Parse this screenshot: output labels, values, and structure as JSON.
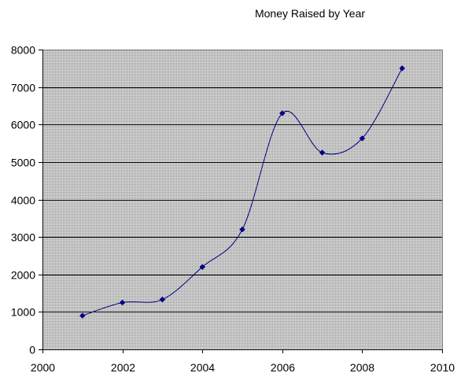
{
  "chart_data": {
    "type": "line",
    "title": "Money Raised by Year",
    "xlabel": "",
    "ylabel": "",
    "xlim": [
      2000,
      2010
    ],
    "ylim": [
      0,
      8000
    ],
    "x_ticks": [
      2000,
      2002,
      2004,
      2006,
      2008,
      2010
    ],
    "y_ticks": [
      0,
      1000,
      2000,
      3000,
      4000,
      5000,
      6000,
      7000,
      8000
    ],
    "grid": "horizontal",
    "legend": "none",
    "smooth": true,
    "series": [
      {
        "x": [
          2001,
          2002,
          2003,
          2004,
          2005,
          2006,
          2007,
          2008,
          2009
        ],
        "y": [
          900,
          1250,
          1330,
          2200,
          3200,
          6300,
          5250,
          5630,
          7500
        ]
      }
    ],
    "colors": {
      "line": "#000080",
      "marker": "#000080",
      "plot_bg": "#c0c0c0",
      "gridline": "#000000",
      "axis": "#808080"
    }
  }
}
